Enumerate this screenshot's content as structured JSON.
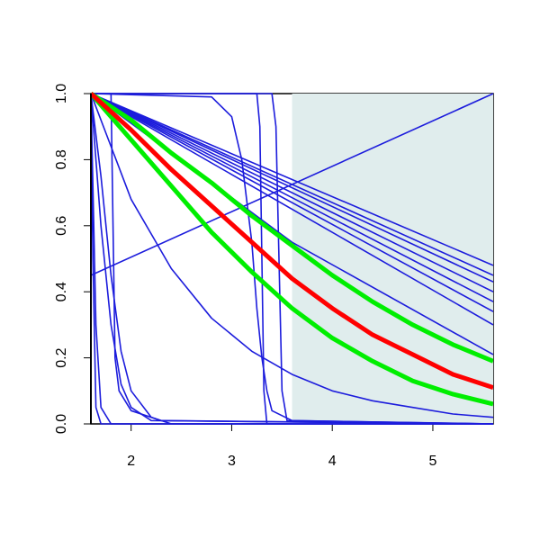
{
  "chart_data": {
    "type": "line",
    "xlim": [
      1.6,
      5.6
    ],
    "ylim": [
      0,
      1
    ],
    "xticks": [
      2,
      3,
      4,
      5
    ],
    "yticks": [
      {
        "value": 0,
        "label": "0.0"
      },
      0.2,
      0.4,
      0.6,
      0.8,
      {
        "value": 1,
        "label": "1.0"
      }
    ],
    "highlight": {
      "x": [
        3.6,
        5.6
      ],
      "color": "#e0eded"
    },
    "series": [
      {
        "color": "#1c1cdc",
        "width": 1.6,
        "x": [
          1.6,
          5.6
        ],
        "values": [
          1,
          0.48
        ]
      },
      {
        "color": "#1c1cdc",
        "width": 1.6,
        "x": [
          1.6,
          5.6
        ],
        "values": [
          1,
          0.45
        ]
      },
      {
        "color": "#1c1cdc",
        "width": 1.6,
        "x": [
          1.6,
          5.6
        ],
        "values": [
          1,
          0.43
        ]
      },
      {
        "color": "#1c1cdc",
        "width": 1.6,
        "x": [
          1.6,
          5.6
        ],
        "values": [
          1,
          0.4
        ]
      },
      {
        "color": "#1c1cdc",
        "width": 1.6,
        "x": [
          1.6,
          5.6
        ],
        "values": [
          1,
          0.37
        ]
      },
      {
        "color": "#1c1cdc",
        "width": 1.6,
        "x": [
          1.6,
          5.6
        ],
        "values": [
          1,
          0.34
        ]
      },
      {
        "color": "#1c1cdc",
        "width": 1.6,
        "x": [
          1.6,
          5.6
        ],
        "values": [
          1,
          0.3
        ]
      },
      {
        "color": "#1c1cdc",
        "width": 1.6,
        "x": [
          1.6,
          3.6,
          5.6
        ],
        "values": [
          1,
          0.55,
          0.21
        ]
      },
      {
        "color": "#1c1cdc",
        "width": 1.6,
        "x": [
          1.6,
          5.6
        ],
        "values": [
          0.45,
          1
        ]
      },
      {
        "color": "#1c1cdc",
        "width": 1.6,
        "x": [
          1.6,
          2.0,
          2.4,
          2.8,
          3.2,
          3.6,
          4.0,
          4.4,
          4.8,
          5.2,
          5.6
        ],
        "values": [
          1,
          0.68,
          0.47,
          0.32,
          0.22,
          0.15,
          0.1,
          0.07,
          0.05,
          0.03,
          0.02
        ]
      },
      {
        "color": "#1c1cdc",
        "width": 1.6,
        "x": [
          1.6,
          1.65,
          1.7,
          1.8,
          5.6
        ],
        "values": [
          1,
          0.3,
          0.05,
          0,
          0
        ]
      },
      {
        "color": "#1c1cdc",
        "width": 1.6,
        "x": [
          1.6,
          1.62,
          1.65,
          1.7,
          5.6
        ],
        "values": [
          1,
          0.5,
          0.05,
          0,
          0
        ]
      },
      {
        "color": "#1c1cdc",
        "width": 1.6,
        "x": [
          1.6,
          1.7,
          1.8,
          1.9,
          2.0,
          2.2,
          5.6
        ],
        "values": [
          1,
          0.6,
          0.3,
          0.12,
          0.05,
          0.01,
          0
        ]
      },
      {
        "color": "#1c1cdc",
        "width": 1.6,
        "x": [
          1.6,
          1.7,
          1.8,
          1.9,
          2.0,
          2.2,
          2.4,
          5.6
        ],
        "values": [
          1,
          0.75,
          0.45,
          0.22,
          0.1,
          0.02,
          0,
          0
        ]
      },
      {
        "color": "#1c1cdc",
        "width": 1.6,
        "x": [
          1.6,
          1.8,
          1.82,
          1.84,
          1.88,
          2.0,
          2.3,
          5.6
        ],
        "values": [
          1,
          1,
          0.6,
          0.2,
          0.1,
          0.04,
          0.01,
          0
        ]
      },
      {
        "color": "#1c1cdc",
        "width": 1.6,
        "x": [
          1.6,
          2.8,
          3.0,
          3.1,
          3.2,
          3.25,
          3.3,
          3.35,
          3.4,
          3.6,
          5.6
        ],
        "values": [
          1,
          0.99,
          0.93,
          0.8,
          0.55,
          0.35,
          0.2,
          0.1,
          0.04,
          0.01,
          0
        ]
      },
      {
        "color": "#1c1cdc",
        "width": 1.6,
        "x": [
          1.6,
          3.25,
          3.28,
          3.3,
          3.32,
          3.35,
          5.6
        ],
        "values": [
          1,
          1,
          0.9,
          0.5,
          0.1,
          0,
          0
        ]
      },
      {
        "color": "#1c1cdc",
        "width": 1.6,
        "x": [
          1.6,
          3.4,
          3.44,
          3.47,
          3.5,
          3.55,
          5.6
        ],
        "values": [
          1,
          1,
          0.9,
          0.5,
          0.1,
          0.01,
          0
        ]
      },
      {
        "color": "#00ee00",
        "width": 5,
        "x": [
          1.6,
          2.0,
          2.4,
          2.8,
          3.2,
          3.6,
          4.0,
          4.4,
          4.8,
          5.2,
          5.6
        ],
        "values": [
          1,
          0.92,
          0.82,
          0.73,
          0.63,
          0.54,
          0.45,
          0.37,
          0.3,
          0.24,
          0.19
        ]
      },
      {
        "color": "#00ee00",
        "width": 5,
        "x": [
          1.6,
          2.0,
          2.4,
          2.8,
          3.2,
          3.6,
          4.0,
          4.4,
          4.8,
          5.2,
          5.6
        ],
        "values": [
          1,
          0.86,
          0.72,
          0.58,
          0.46,
          0.35,
          0.26,
          0.19,
          0.13,
          0.09,
          0.06
        ]
      },
      {
        "color": "#ff0000",
        "width": 5,
        "x": [
          1.6,
          2.0,
          2.4,
          2.8,
          3.2,
          3.6,
          4.0,
          4.4,
          4.8,
          5.2,
          5.6
        ],
        "values": [
          1,
          0.89,
          0.77,
          0.66,
          0.55,
          0.44,
          0.35,
          0.27,
          0.21,
          0.15,
          0.11
        ]
      }
    ]
  }
}
